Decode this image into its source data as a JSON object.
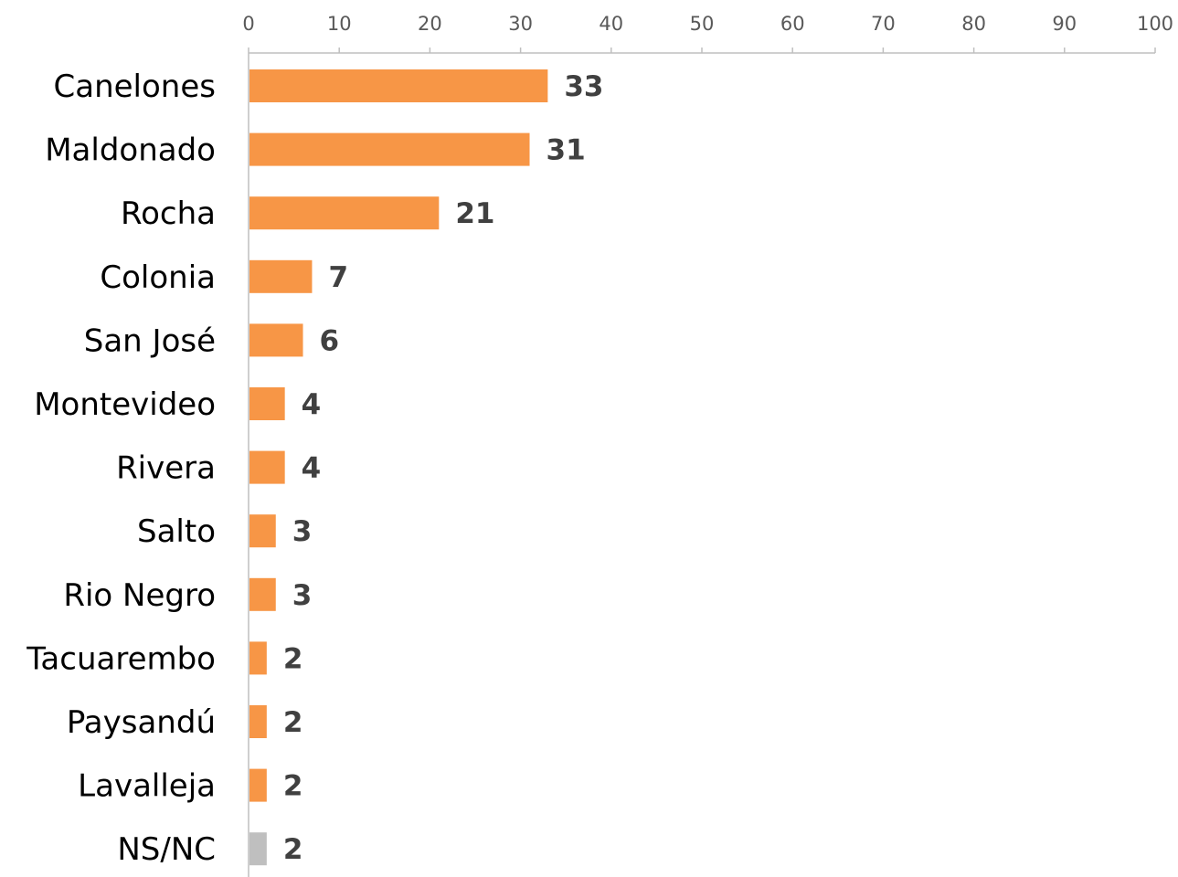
{
  "chart_data": {
    "type": "bar",
    "orientation": "horizontal",
    "categories": [
      "Canelones",
      "Maldonado",
      "Rocha",
      "Colonia",
      "San José",
      "Montevideo",
      "Rivera",
      "Salto",
      "Rio Negro",
      "Tacuarembo",
      "Paysandú",
      "Lavalleja",
      "NS/NC"
    ],
    "values": [
      33,
      31,
      21,
      7,
      6,
      4,
      4,
      3,
      3,
      2,
      2,
      2,
      2
    ],
    "data_labels": [
      "33",
      "31",
      "21",
      "7",
      "6",
      "4",
      "4",
      "3",
      "3",
      "2",
      "2",
      "2",
      "2"
    ],
    "xaxis_position": "top",
    "xlim": [
      0,
      100
    ],
    "xticks": [
      0,
      10,
      20,
      30,
      40,
      50,
      60,
      70,
      80,
      90,
      100
    ],
    "xtick_labels": [
      "0",
      "10",
      "20",
      "30",
      "40",
      "50",
      "60",
      "70",
      "80",
      "90",
      "100"
    ],
    "title": "",
    "xlabel": "",
    "ylabel": "",
    "grid": false,
    "legend": "none",
    "colors": {
      "bar": "#F79646",
      "bar_last": "#BFBFBF",
      "axis": "#BFBFBF",
      "tick_text": "#595959",
      "category_text": "#000000",
      "data_label_text": "#404040"
    }
  }
}
